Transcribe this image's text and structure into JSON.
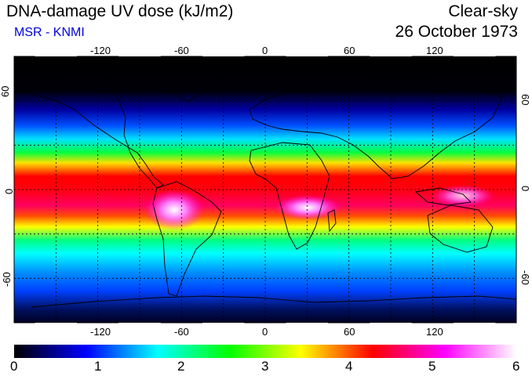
{
  "header": {
    "title": "DNA-damage UV dose (kJ/m2)",
    "subtitle": "MSR - KNMI",
    "sky_condition": "Clear-sky",
    "date": "26 October 1973"
  },
  "map": {
    "projection": "equirectangular",
    "lon_range": [
      -180,
      180
    ],
    "lat_range": [
      -90,
      90
    ],
    "grid_spacing_lon": 30,
    "grid_spacing_lat": 30,
    "grid_style": "dotted",
    "lon_tick_labels": [
      "-120",
      "-60",
      "0",
      "60",
      "120"
    ],
    "lat_tick_labels_left": [
      "60",
      "0",
      "-60"
    ],
    "lat_tick_labels_right": [
      "60",
      "0",
      "-60"
    ]
  },
  "colorbar": {
    "min": 0,
    "max": 6,
    "tick_labels": [
      "0",
      "1",
      "2",
      "3",
      "4",
      "5",
      "6"
    ],
    "colors": [
      "#000000",
      "#0000ff",
      "#00ffff",
      "#00ff00",
      "#ffff00",
      "#ff0000",
      "#ff00ff",
      "#ffffff"
    ]
  }
}
